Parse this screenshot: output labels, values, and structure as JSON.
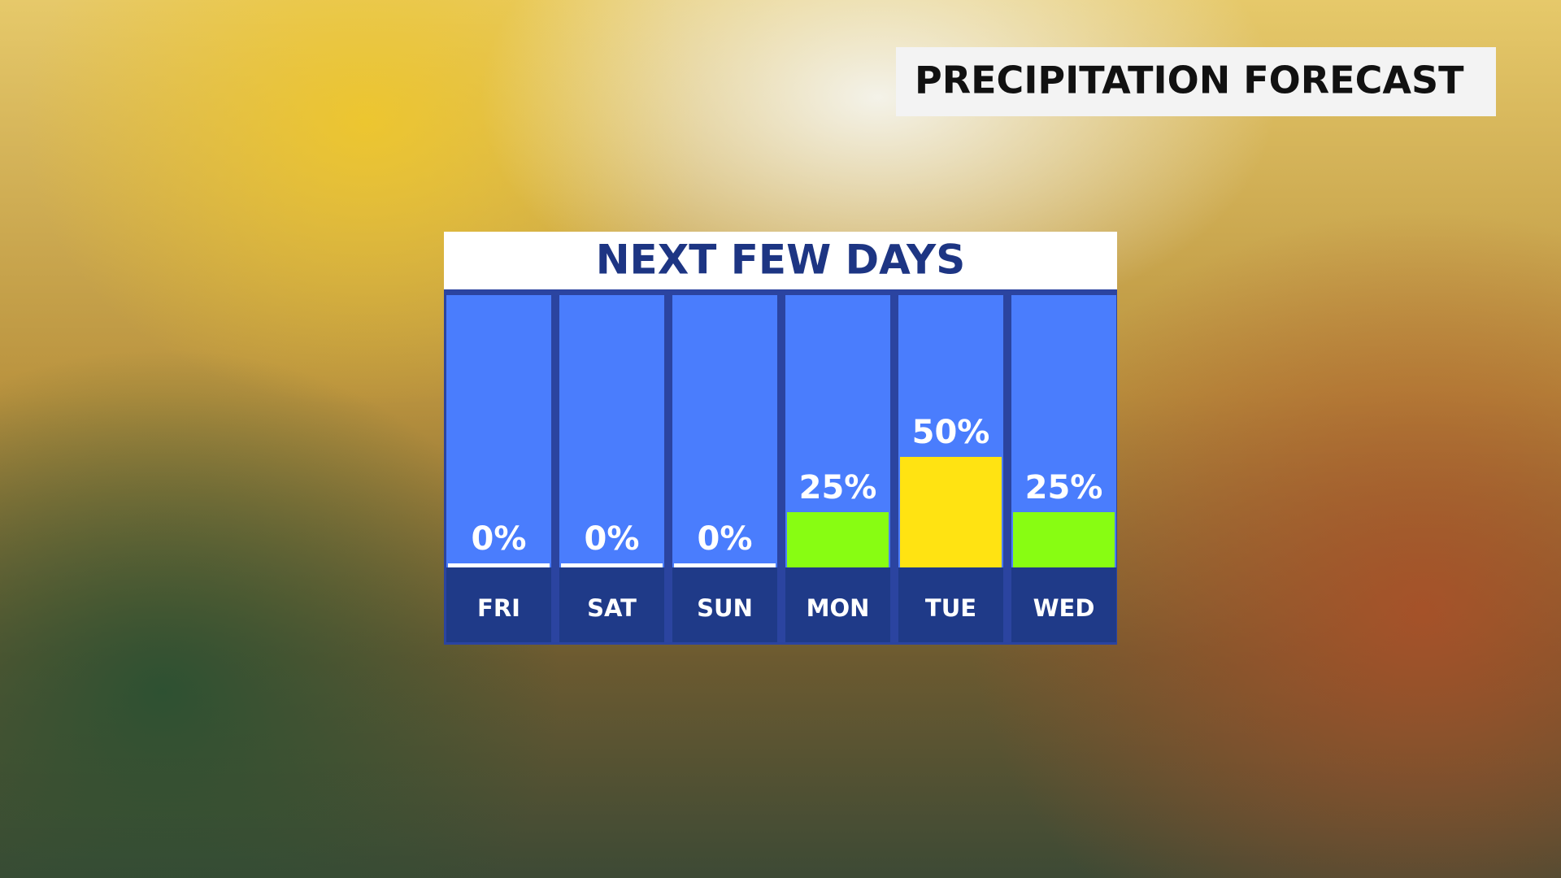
{
  "header": {
    "title": "PRECIPITATION FORECAST"
  },
  "chart_data": {
    "type": "bar",
    "title": "NEXT FEW DAYS",
    "categories": [
      "FRI",
      "SAT",
      "SUN",
      "MON",
      "TUE",
      "WED"
    ],
    "values": [
      0,
      0,
      0,
      25,
      50,
      25
    ],
    "value_labels": [
      "0%",
      "0%",
      "0%",
      "25%",
      "50%",
      "25%"
    ],
    "colors": [
      "#ffffff",
      "#ffffff",
      "#ffffff",
      "#88fd12",
      "#ffe312",
      "#88fd12"
    ]
  }
}
